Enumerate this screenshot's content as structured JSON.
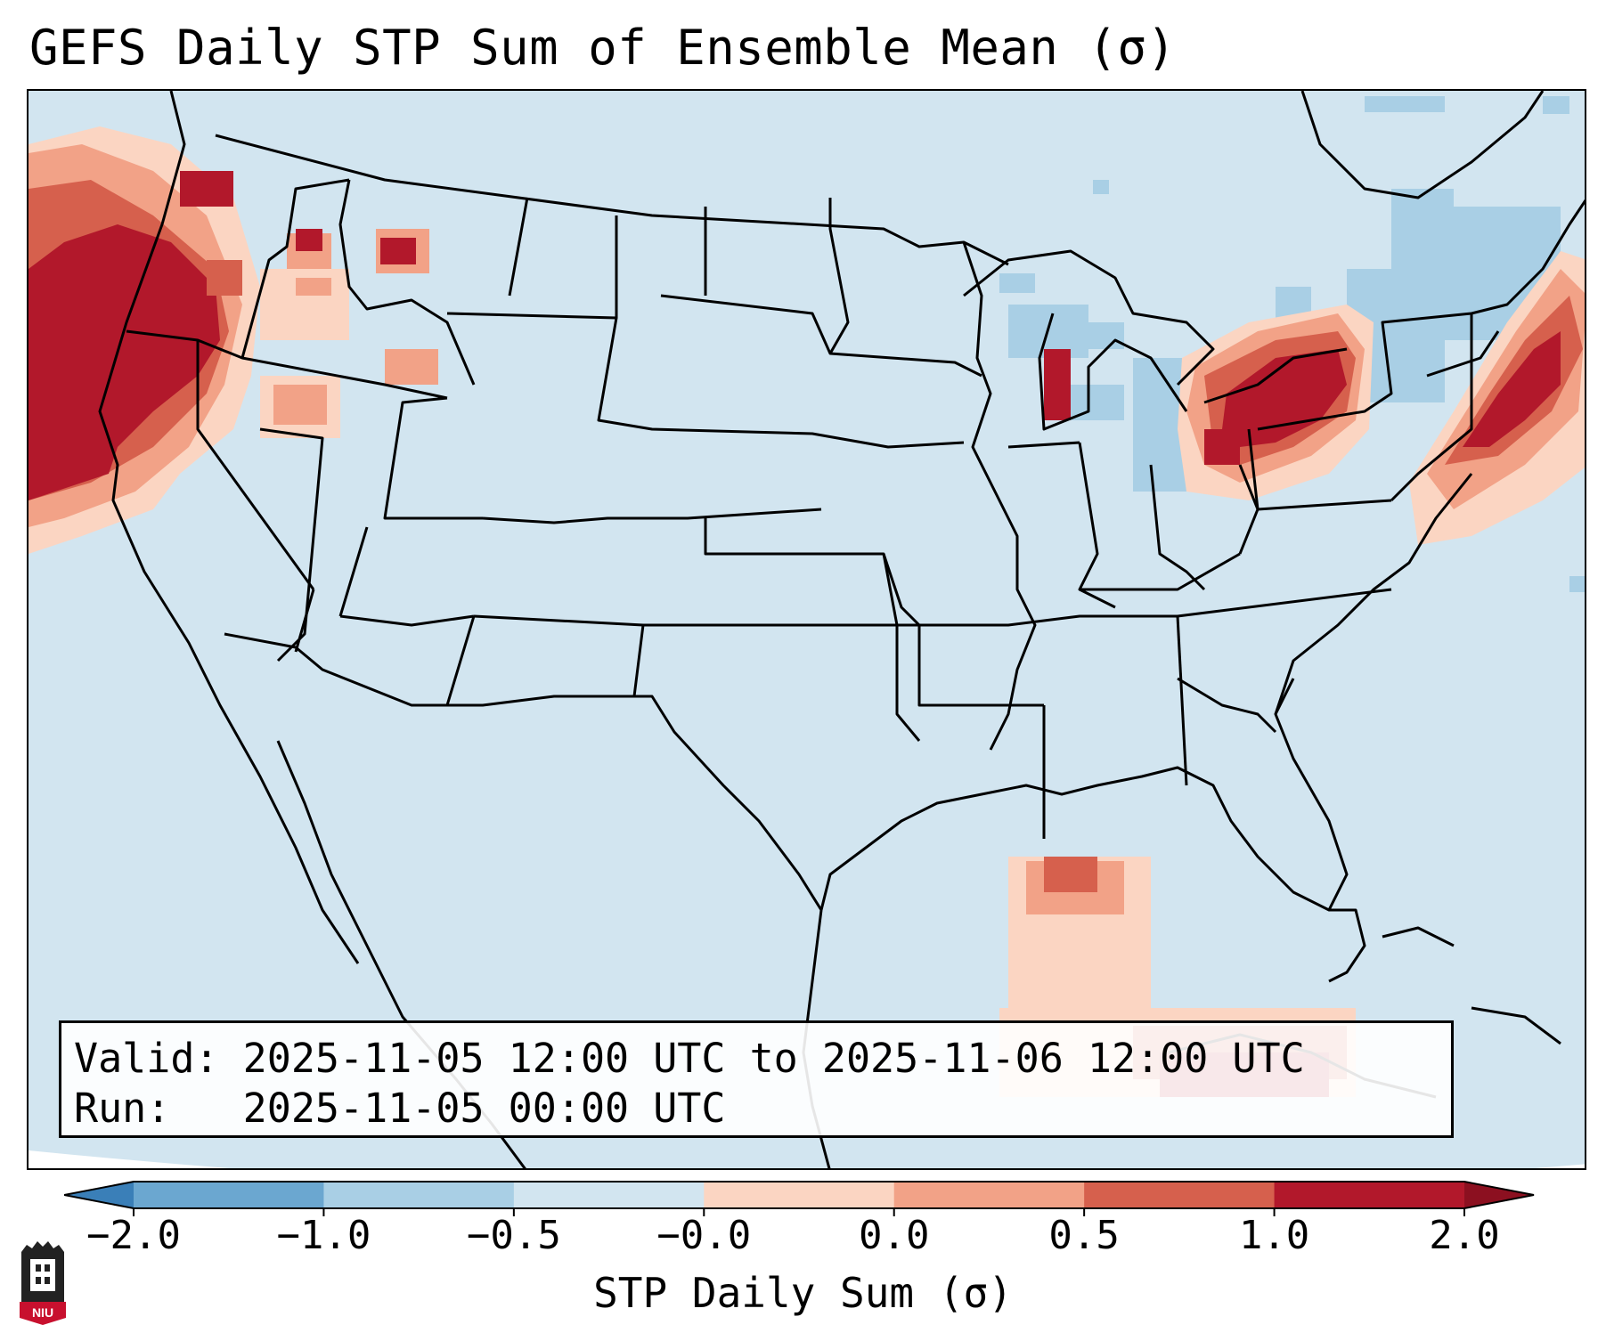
{
  "title": "GEFS Daily STP Sum of Ensemble Mean (σ)",
  "info_box": {
    "valid_line": "Valid: 2025-11-05 12:00 UTC to 2025-11-06 12:00 UTC",
    "run_line": "Run:   2025-11-05 00:00 UTC"
  },
  "colorbar": {
    "label": "STP Daily Sum (σ)",
    "ticks": [
      "−2.0",
      "−1.0",
      "−0.5",
      "−0.0",
      "0.0",
      "0.5",
      "1.0",
      "2.0"
    ],
    "colors": [
      "#3a7fb8",
      "#6ba7d0",
      "#a9cfe5",
      "#d2e5f0",
      "#fbd5c2",
      "#f2a287",
      "#d6604d",
      "#b2182b",
      "#8c1020"
    ]
  },
  "map": {
    "background_color": "#d2e5f0",
    "anomaly_regions": [
      {
        "region": "Pacific Northwest coast",
        "sign": "positive"
      },
      {
        "region": "Idaho / Nevada",
        "sign": "positive"
      },
      {
        "region": "Lake Michigan",
        "sign": "positive"
      },
      {
        "region": "Ohio Valley / Pennsylvania",
        "sign": "positive"
      },
      {
        "region": "New England / Atlantic",
        "sign": "positive"
      },
      {
        "region": "Caribbean / Cuba",
        "sign": "positive"
      },
      {
        "region": "Great Lakes / Quebec",
        "sign": "negative"
      }
    ]
  },
  "logo": {
    "text": "NIU"
  }
}
